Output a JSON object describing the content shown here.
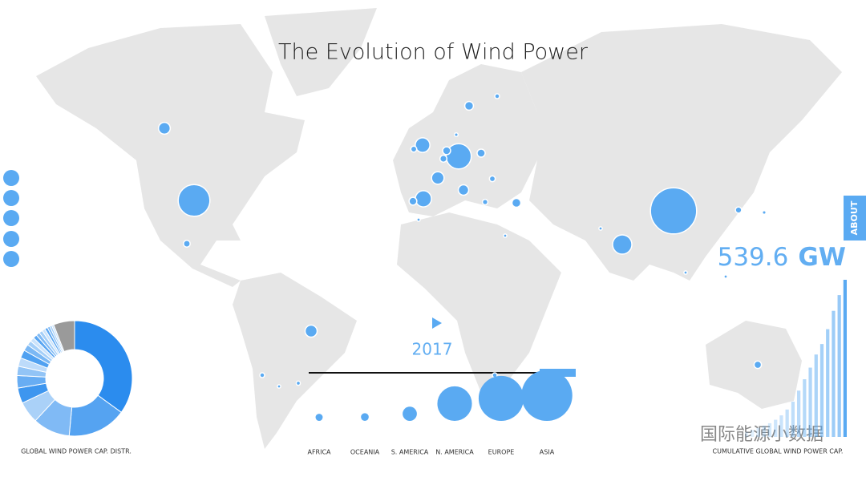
{
  "title": "The Evolution of Wind Power",
  "year": "2017",
  "total": {
    "value": 539.6,
    "unit": "GW"
  },
  "about": "ABOUT",
  "map_bubbles": {
    "values": [
      12.2,
      89,
      4,
      12.8,
      2,
      1,
      1.5,
      18.9,
      3.1,
      56,
      5.5,
      6.7,
      1.2,
      2,
      4.3,
      13.8,
      23,
      5.3,
      9.5,
      5.8,
      6.9,
      3,
      2.6,
      188,
      32.8,
      3.4,
      1.2,
      4.8,
      2,
      1,
      1,
      1,
      1,
      1
    ]
  },
  "continents": {
    "labels": [
      "AFRICA",
      "OCEANIA",
      "S. AMERICA",
      "N. AMERICA",
      "EUROPE",
      "ASIA"
    ],
    "values": [
      4.5,
      5.3,
      17.9,
      105.3,
      178.8,
      228.5
    ]
  },
  "distribution": {
    "label": "GLOBAL WIND POWER CAP. DISTR.",
    "values": [
      35.0,
      16.5,
      10.4,
      6.1,
      4.3,
      3.5,
      2.6,
      2.4,
      2.3,
      1.8,
      1.3,
      1.2,
      1.1,
      1.0,
      1.0,
      0.9,
      0.8,
      0.7,
      0.6,
      0.6,
      5.9
    ]
  },
  "cumulative": {
    "label": "CUMULATIVE GLOBAL WIND POWER CAP.",
    "values": [
      17,
      24,
      31,
      39,
      47,
      59,
      74,
      94,
      121,
      159,
      198,
      238,
      283,
      319,
      370,
      433,
      487,
      539.6
    ]
  },
  "watermark": "国际能源小数据"
}
